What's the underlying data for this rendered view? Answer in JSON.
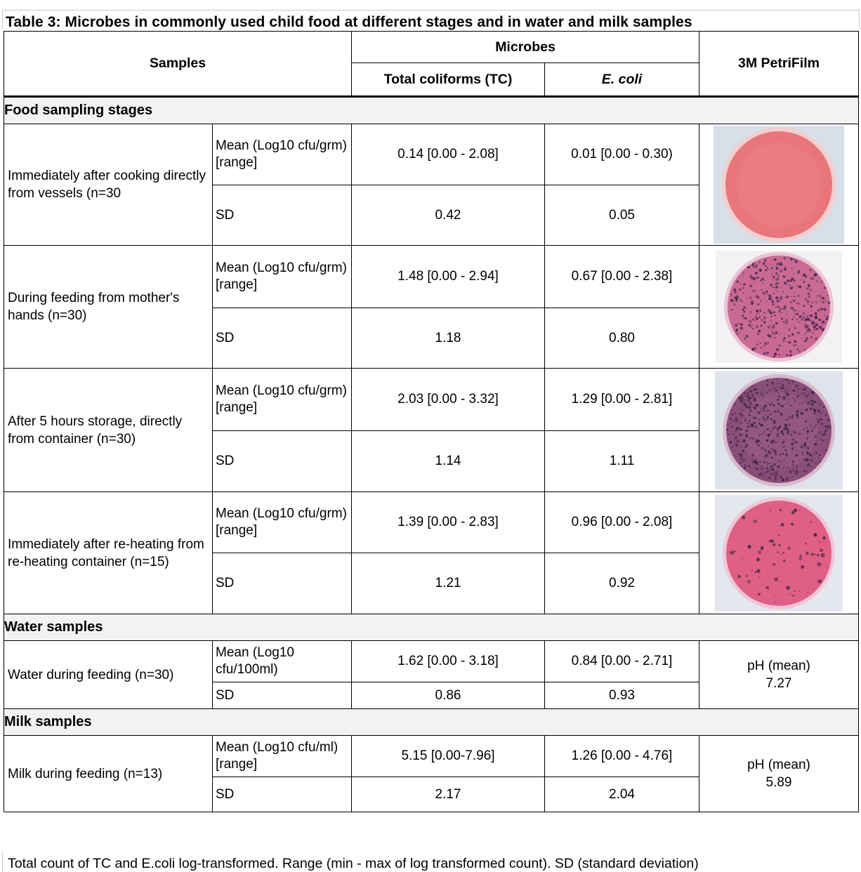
{
  "caption": "Table 3: Microbes in commonly used child food at different stages and in water and milk samples",
  "header": {
    "samples": "Samples",
    "microbes": "Microbes",
    "tc": "Total coliforms (TC)",
    "ecoli": "E. coli",
    "petrifilm": "3M PetriFilm"
  },
  "sections": {
    "food": "Food sampling stages",
    "water": "Water samples",
    "milk": "Milk samples"
  },
  "rows": [
    {
      "label": "Immediately after cooking directly from vessels (n=30",
      "mean_label": "Mean (Log10 cfu/grm) [range]",
      "tc_mean": "0.14 [0.00 - 2.08]",
      "ec_mean": "0.01 [0.00 - 0.30)",
      "sd_label": "SD",
      "tc_sd": "0.42",
      "ec_sd": "0.05",
      "plate": "petrifilm-plate-clean"
    },
    {
      "label": "During feeding from mother's hands (n=30)",
      "mean_label": "Mean (Log10 cfu/grm) [range]",
      "tc_mean": "1.48 [0.00 - 2.94]",
      "ec_mean": "0.67 [0.00 - 2.38]",
      "sd_label": "SD",
      "tc_sd": "1.18",
      "ec_sd": "0.80",
      "plate": "petrifilm-plate-dense-colonies"
    },
    {
      "label": "After 5 hours storage, directly from container (n=30)",
      "mean_label": "Mean (Log10 cfu/grm) [range]",
      "tc_mean": "2.03 [0.00 - 3.32]",
      "ec_mean": "1.29 [0.00 - 2.81]",
      "sd_label": "SD",
      "tc_sd": "1.14",
      "ec_sd": "1.11",
      "plate": "petrifilm-plate-heavy-colonies"
    },
    {
      "label": "Immediately after re-heating from re-heating container (n=15)",
      "mean_label": "Mean (Log10 cfu/grm) [range]",
      "tc_mean": "1.39 [0.00 - 2.83]",
      "ec_mean": "0.96 [0.00 - 2.08]",
      "sd_label": "SD",
      "tc_sd": "1.21",
      "ec_sd": "0.92",
      "plate": "petrifilm-plate-sparse-colonies"
    }
  ],
  "water": {
    "label": "Water during feeding (n=30)",
    "mean_label": "Mean (Log10 cfu/100ml)",
    "tc_mean": "1.62 [0.00 - 3.18]",
    "ec_mean": "0.84 [0.00 - 2.71]",
    "sd_label": "SD",
    "tc_sd": "0.86",
    "ec_sd": "0.93",
    "ph_label": "pH (mean)",
    "ph_value": "7.27"
  },
  "milk": {
    "label": "Milk during feeding (n=13)",
    "mean_label": "Mean (Log10 cfu/ml) [range]",
    "tc_mean": "5.15 [0.00-7.96]",
    "ec_mean": "1.26 [0.00 - 4.76]",
    "sd_label": "SD",
    "tc_sd": "2.17",
    "ec_sd": "2.04",
    "ph_label": "pH (mean)",
    "ph_value": "5.89"
  },
  "footnote": "Total count of TC and E.coli log-transformed. Range (min - max of log transformed count). SD (standard deviation)",
  "colors": {
    "section_bg": "#f2f2f2",
    "plate_base": "#e8767a",
    "plate_colony": "#4a2a4a"
  }
}
